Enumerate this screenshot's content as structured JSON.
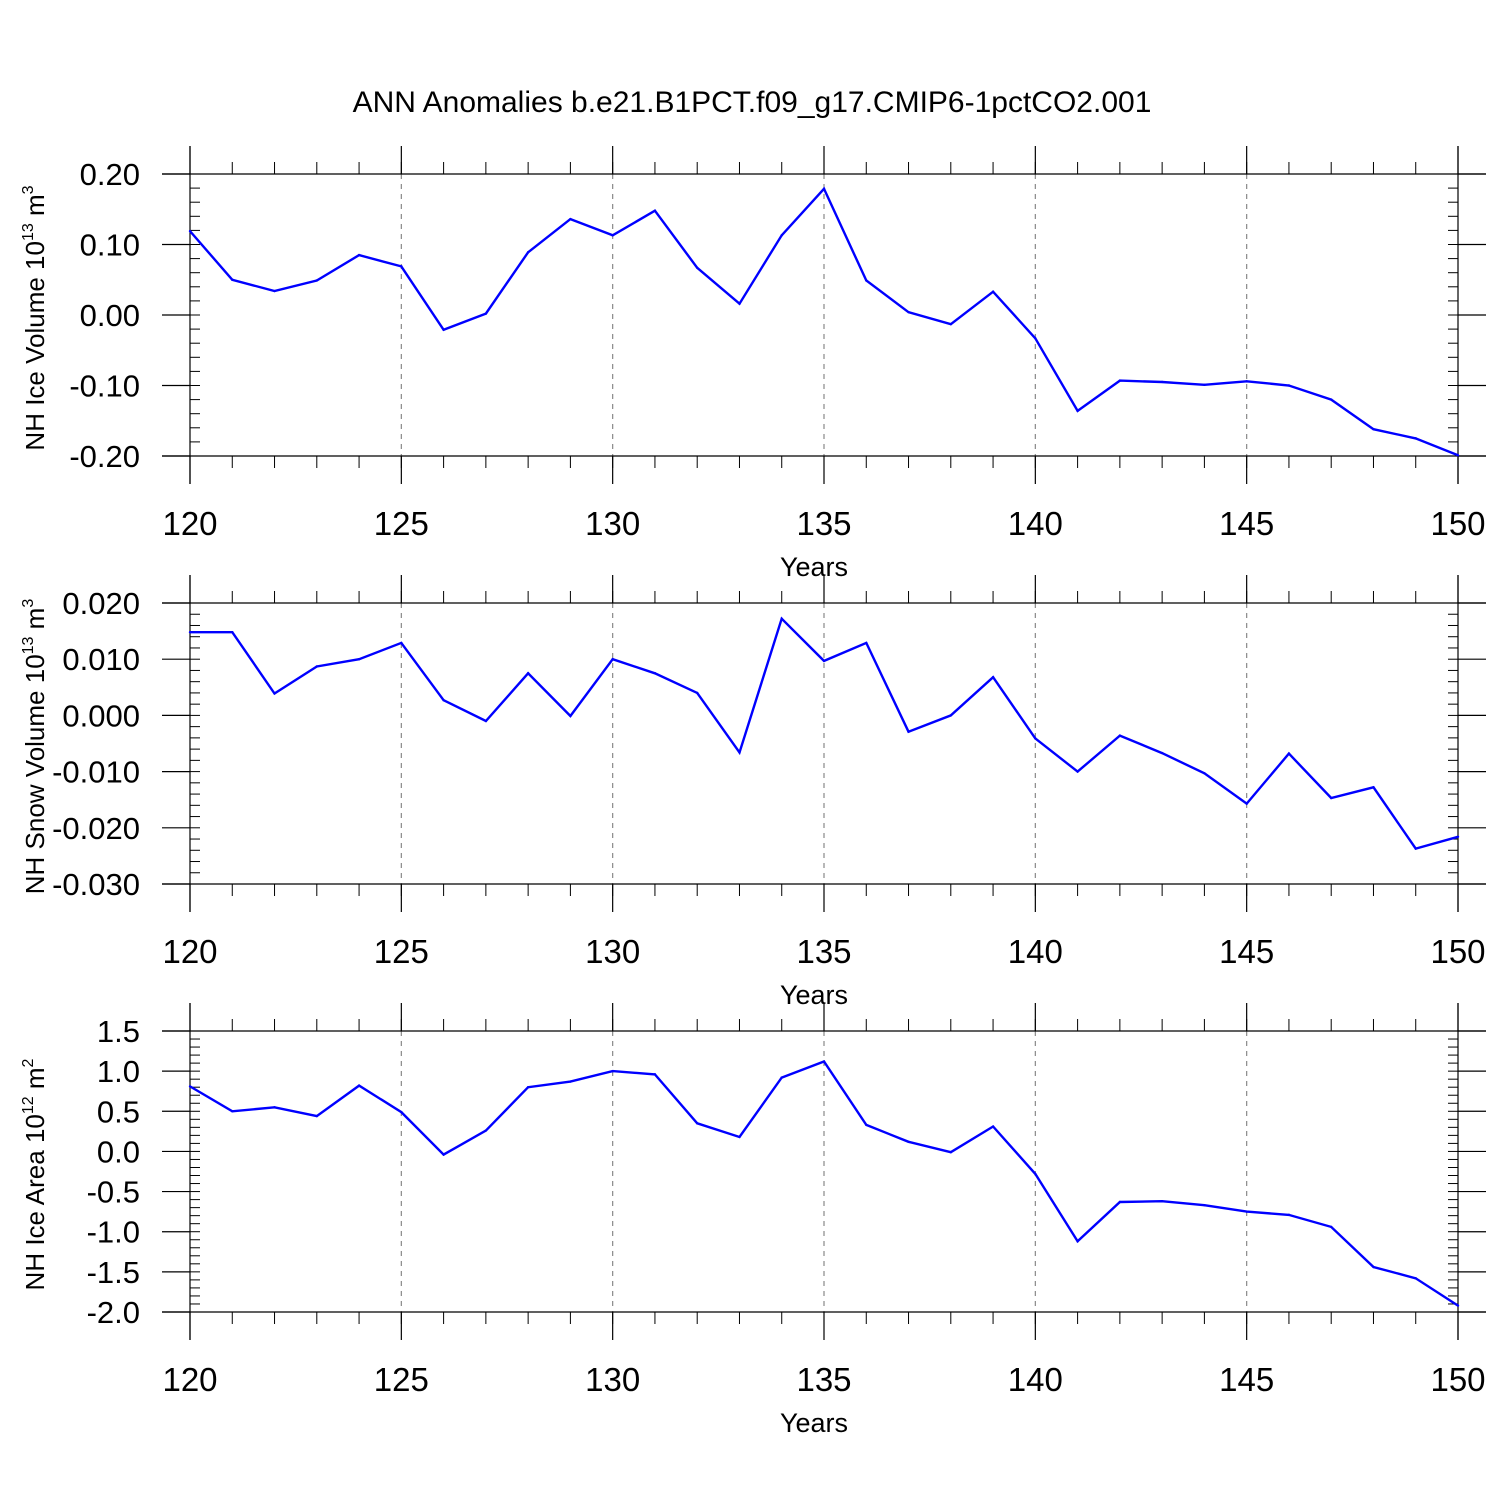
{
  "title": "ANN Anomalies b.e21.B1PCT.f09_g17.CMIP6-1pctCO2.001",
  "line_color": "#0000ff",
  "chart_data": [
    {
      "type": "line",
      "xlabel": "Years",
      "ylabel": "NH Ice Volume 10",
      "ylabel_exp": "13",
      "ylabel_unit": "m",
      "ylabel_unit_exp": "3",
      "xlim": [
        120,
        150
      ],
      "ylim": [
        -0.2,
        0.2
      ],
      "x_ticks": [
        120,
        125,
        130,
        135,
        140,
        145,
        150
      ],
      "y_ticks": [
        -0.2,
        -0.1,
        0.0,
        0.1,
        0.2
      ],
      "y_tick_labels": [
        "-0.20",
        "-0.10",
        "0.00",
        "0.10",
        "0.20"
      ],
      "grid": "vertical dashed at major x ticks",
      "x": [
        120,
        121,
        122,
        123,
        124,
        125,
        126,
        127,
        128,
        129,
        130,
        131,
        132,
        133,
        134,
        135,
        136,
        137,
        138,
        139,
        140,
        141,
        142,
        143,
        144,
        145,
        146,
        147,
        148,
        149,
        150
      ],
      "values": [
        0.119,
        0.05,
        0.034,
        0.049,
        0.085,
        0.069,
        -0.021,
        0.002,
        0.089,
        0.136,
        0.113,
        0.148,
        0.067,
        0.016,
        0.113,
        0.179,
        0.049,
        0.004,
        -0.013,
        0.033,
        -0.033,
        -0.136,
        -0.093,
        -0.095,
        -0.099,
        -0.094,
        -0.1,
        -0.12,
        -0.162,
        -0.175,
        -0.199
      ]
    },
    {
      "type": "line",
      "xlabel": "Years",
      "ylabel": "NH Snow Volume 10",
      "ylabel_exp": "13",
      "ylabel_unit": "m",
      "ylabel_unit_exp": "3",
      "xlim": [
        120,
        150
      ],
      "ylim": [
        -0.03,
        0.02
      ],
      "x_ticks": [
        120,
        125,
        130,
        135,
        140,
        145,
        150
      ],
      "y_ticks": [
        -0.03,
        -0.02,
        -0.01,
        0.0,
        0.01,
        0.02
      ],
      "y_tick_labels": [
        "-0.030",
        "-0.020",
        "-0.010",
        "0.000",
        "0.010",
        "0.020"
      ],
      "grid": "vertical dashed at major x ticks",
      "x": [
        120,
        121,
        122,
        123,
        124,
        125,
        126,
        127,
        128,
        129,
        130,
        131,
        132,
        133,
        134,
        135,
        136,
        137,
        138,
        139,
        140,
        141,
        142,
        143,
        144,
        145,
        146,
        147,
        148,
        149,
        150
      ],
      "values": [
        0.0148,
        0.0148,
        0.0039,
        0.0087,
        0.01,
        0.0129,
        0.0027,
        -0.001,
        0.0075,
        -0.0001,
        0.01,
        0.0075,
        0.004,
        -0.0066,
        0.0172,
        0.0097,
        0.0129,
        -0.0029,
        0.0,
        0.0068,
        -0.0041,
        -0.01,
        -0.0036,
        -0.0067,
        -0.0103,
        -0.0157,
        -0.0068,
        -0.0147,
        -0.0128,
        -0.0237,
        -0.0216
      ]
    },
    {
      "type": "line",
      "xlabel": "Years",
      "ylabel": "NH Ice Area 10",
      "ylabel_exp": "12",
      "ylabel_unit": "m",
      "ylabel_unit_exp": "2",
      "xlim": [
        120,
        150
      ],
      "ylim": [
        -2.0,
        1.5
      ],
      "x_ticks": [
        120,
        125,
        130,
        135,
        140,
        145,
        150
      ],
      "y_ticks": [
        -2.0,
        -1.5,
        -1.0,
        -0.5,
        0.0,
        0.5,
        1.0,
        1.5
      ],
      "y_tick_labels": [
        "-2.0",
        "-1.5",
        "-1.0",
        "-0.5",
        "0.0",
        "0.5",
        "1.0",
        "1.5"
      ],
      "grid": "vertical dashed at major x ticks",
      "x": [
        120,
        121,
        122,
        123,
        124,
        125,
        126,
        127,
        128,
        129,
        130,
        131,
        132,
        133,
        134,
        135,
        136,
        137,
        138,
        139,
        140,
        141,
        142,
        143,
        144,
        145,
        146,
        147,
        148,
        149,
        150
      ],
      "values": [
        0.81,
        0.5,
        0.55,
        0.44,
        0.82,
        0.49,
        -0.04,
        0.26,
        0.8,
        0.87,
        1.0,
        0.96,
        0.35,
        0.18,
        0.92,
        1.12,
        0.33,
        0.12,
        -0.01,
        0.31,
        -0.28,
        -1.12,
        -0.63,
        -0.62,
        -0.67,
        -0.75,
        -0.79,
        -0.94,
        -1.44,
        -1.58,
        -1.92
      ]
    }
  ]
}
